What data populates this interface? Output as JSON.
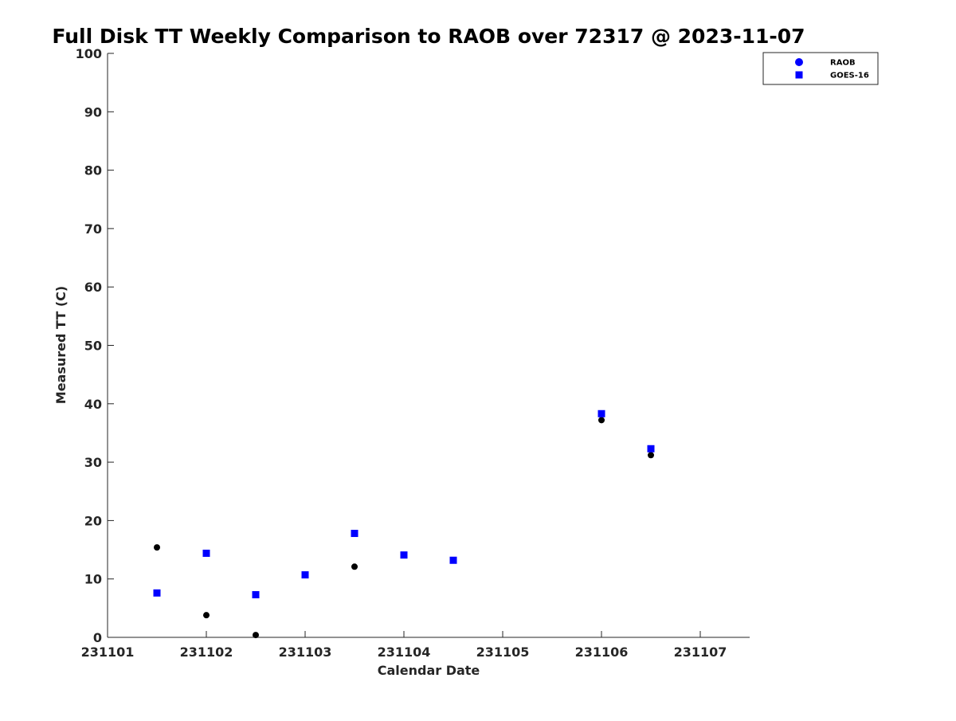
{
  "chart_data": {
    "type": "scatter",
    "title": "Full Disk TT Weekly Comparison to RAOB over 72317 @ 2023-11-07",
    "xlabel": "Calendar Date",
    "ylabel": "Measured TT (C)",
    "xlim": [
      0,
      6.5
    ],
    "ylim": [
      0,
      100
    ],
    "x_ticks": [
      {
        "value": 0,
        "label": "231101"
      },
      {
        "value": 1,
        "label": "231102"
      },
      {
        "value": 2,
        "label": "231103"
      },
      {
        "value": 3,
        "label": "231104"
      },
      {
        "value": 4,
        "label": "231105"
      },
      {
        "value": 5,
        "label": "231106"
      },
      {
        "value": 6,
        "label": "231107"
      }
    ],
    "y_ticks": [
      0,
      10,
      20,
      30,
      40,
      50,
      60,
      70,
      80,
      90,
      100
    ],
    "grid": false,
    "legend_position": "top-right",
    "series": [
      {
        "name": "RAOB",
        "marker": "circle",
        "legend_color": "#0000ff",
        "color": "#000000",
        "points": [
          {
            "x": 0.5,
            "y": 15.4
          },
          {
            "x": 1.0,
            "y": 3.8
          },
          {
            "x": 1.5,
            "y": 0.4
          },
          {
            "x": 2.5,
            "y": 12.1
          },
          {
            "x": 5.0,
            "y": 37.2
          },
          {
            "x": 5.5,
            "y": 31.2
          }
        ]
      },
      {
        "name": "GOES-16",
        "marker": "square",
        "legend_color": "#0000ff",
        "color": "#0000ff",
        "points": [
          {
            "x": 0.5,
            "y": 7.6
          },
          {
            "x": 1.0,
            "y": 14.4
          },
          {
            "x": 1.5,
            "y": 7.3
          },
          {
            "x": 2.0,
            "y": 10.7
          },
          {
            "x": 2.5,
            "y": 17.8
          },
          {
            "x": 3.0,
            "y": 14.1
          },
          {
            "x": 3.5,
            "y": 13.2
          },
          {
            "x": 5.0,
            "y": 38.3
          },
          {
            "x": 5.5,
            "y": 32.3
          }
        ]
      }
    ]
  }
}
